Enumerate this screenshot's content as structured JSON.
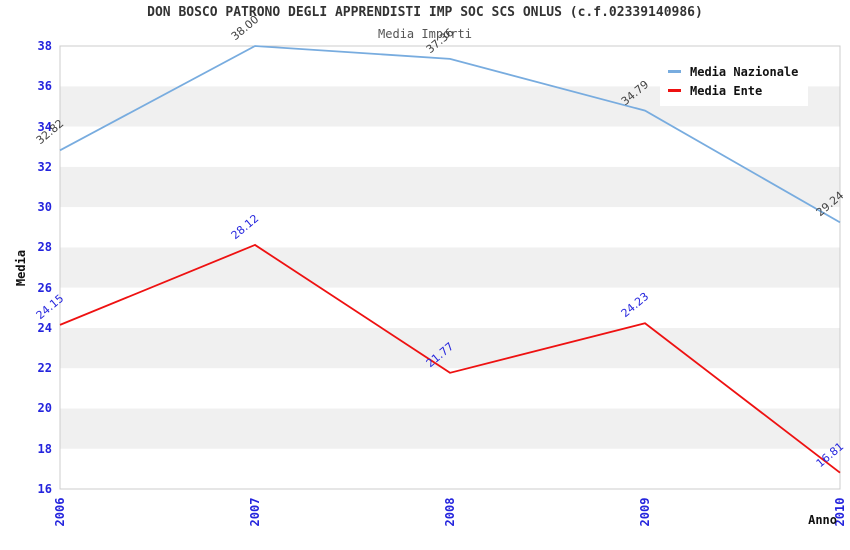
{
  "chart_data": {
    "type": "line",
    "title": "DON BOSCO PATRONO DEGLI APPRENDISTI IMP SOC SCS ONLUS (c.f.02339140986)",
    "subtitle": "Media Importi",
    "xlabel": "Anno",
    "ylabel": "Media",
    "x": [
      2006,
      2007,
      2008,
      2009,
      2010
    ],
    "yticks": [
      16,
      18,
      20,
      22,
      24,
      26,
      28,
      30,
      32,
      34,
      36,
      38
    ],
    "ylim": [
      16,
      38
    ],
    "legend_position": "top-right",
    "grid": "alternating horizontal bands, 2-unit step",
    "series": [
      {
        "name": "Media Nazionale",
        "color": "#78acdf",
        "label_color": "#404040",
        "values": [
          32.82,
          38.0,
          37.36,
          34.79,
          29.24
        ]
      },
      {
        "name": "Media Ente",
        "color": "#ee1111",
        "label_color": "#2424dd",
        "values": [
          24.15,
          28.12,
          21.77,
          24.23,
          16.81
        ]
      }
    ],
    "colors": {
      "tick_label": "#2424dd",
      "band_alt": "#f0f0f0",
      "band_main": "#ffffff",
      "plot_border": "#cccccc",
      "title_text": "#333333",
      "subtitle_text": "#555555",
      "axis_title_text": "#111111"
    }
  }
}
